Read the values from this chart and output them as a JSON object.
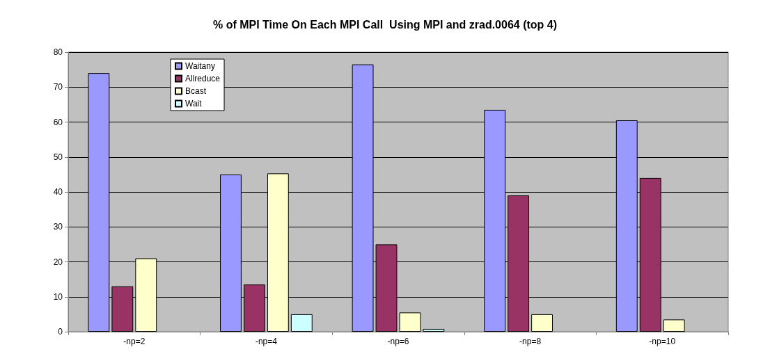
{
  "chart_data": {
    "type": "bar",
    "title": "% of MPI Time On Each MPI Call  Using MPI and zrad.0064 (top 4)",
    "categories": [
      "-np=2",
      "-np=4",
      "-np=6",
      "-np=8",
      "-np=10"
    ],
    "series": [
      {
        "name": "Waitany",
        "color": "#9999ff",
        "values": [
          74,
          45,
          76.5,
          63.5,
          60.5
        ]
      },
      {
        "name": "Allreduce",
        "color": "#993366",
        "values": [
          13,
          13.5,
          25,
          39,
          44
        ]
      },
      {
        "name": "Bcast",
        "color": "#ffffcc",
        "values": [
          21,
          45.3,
          5.5,
          5,
          3.5
        ]
      },
      {
        "name": "Wait",
        "color": "#ccffff",
        "values": [
          null,
          5,
          0.8,
          null,
          null
        ]
      }
    ],
    "ylim": [
      0,
      80
    ],
    "yticks": [
      0,
      10,
      20,
      30,
      40,
      50,
      60,
      70,
      80
    ],
    "grid": "y",
    "legend": "top left"
  }
}
